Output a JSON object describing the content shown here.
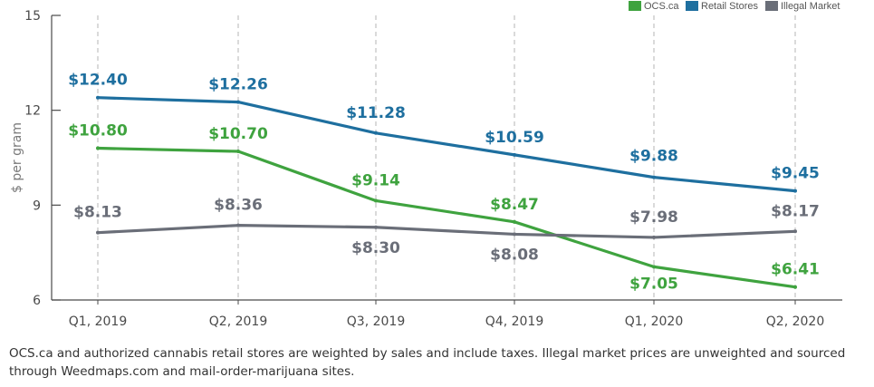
{
  "chart_data": {
    "type": "line",
    "categories": [
      "Q1, 2019",
      "Q2, 2019",
      "Q3, 2019",
      "Q4, 2019",
      "Q1, 2020",
      "Q2, 2020"
    ],
    "ylabel": "$ per gram",
    "ylim": [
      6,
      15
    ],
    "yticks": [
      6,
      9,
      12,
      15
    ],
    "grid": "vertical dashed",
    "legend_position": "top-right",
    "series": [
      {
        "name": "OCS.ca",
        "color": "#3fa33f",
        "values": [
          10.8,
          10.7,
          9.14,
          8.47,
          7.05,
          6.41
        ],
        "labels": [
          "$10.80",
          "$10.70",
          "$9.14",
          "$8.47",
          "$7.05",
          "$6.41"
        ]
      },
      {
        "name": "Retail Stores",
        "color": "#1e6f9f",
        "values": [
          12.4,
          12.26,
          11.28,
          10.59,
          9.88,
          9.45
        ],
        "labels": [
          "$12.40",
          "$12.26",
          "$11.28",
          "$10.59",
          "$9.88",
          "$9.45"
        ]
      },
      {
        "name": "Illegal Market",
        "color": "#6a6e78",
        "values": [
          8.13,
          8.36,
          8.3,
          8.08,
          7.98,
          8.17
        ],
        "labels": [
          "$8.13",
          "$8.36",
          "$8.30",
          "$8.08",
          "$7.98",
          "$8.17"
        ]
      }
    ]
  },
  "caption": "OCS.ca and authorized cannabis retail stores are weighted by sales and include taxes. Illegal market prices are unweighted and sourced through Weedmaps.com and mail-order-marijuana sites."
}
